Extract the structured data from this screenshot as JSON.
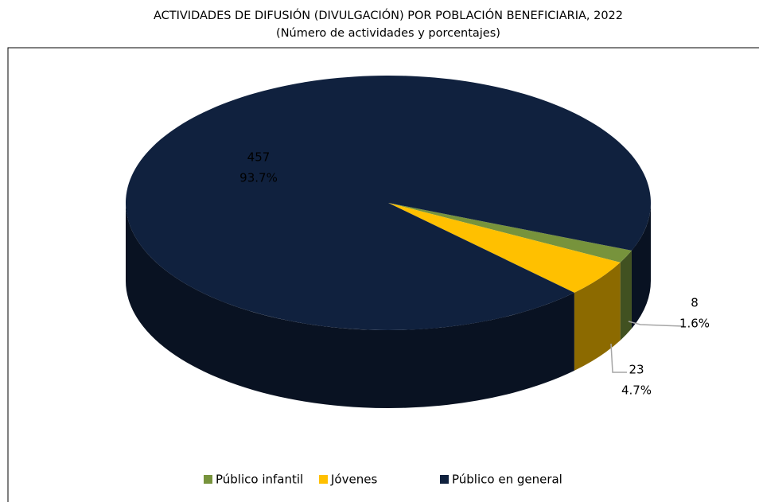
{
  "chart_data": {
    "type": "pie",
    "title": "ACTIVIDADES DE DIFUSIÓN (DIVULGACIÓN) POR POBLACIÓN BENEFICIARIA, 2022",
    "subtitle": "(Número de actividades y porcentajes)",
    "categories": [
      "Público infantil",
      "Jóvenes",
      "Público en general"
    ],
    "values": [
      8,
      23,
      457
    ],
    "percentages": [
      1.6,
      4.7,
      93.7
    ],
    "percentage_labels": [
      "1.6%",
      "4.7%",
      "93.7%"
    ],
    "colors": [
      "#77933c",
      "#ffc000",
      "#10213e"
    ],
    "legend": "bottom"
  }
}
